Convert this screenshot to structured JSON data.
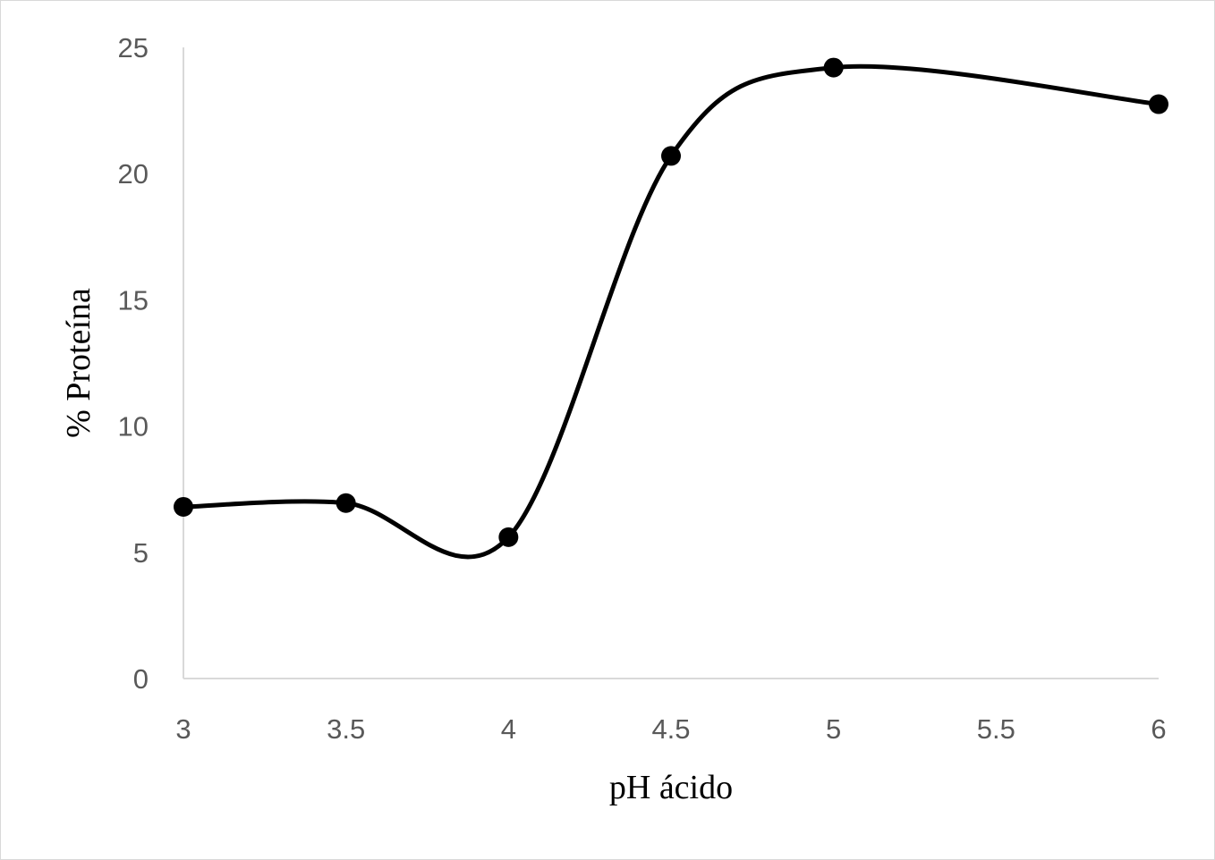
{
  "chart_data": {
    "type": "line",
    "smooth": true,
    "x": [
      3,
      3.5,
      4,
      4.5,
      5,
      6
    ],
    "series": [
      {
        "values": [
          6.8,
          6.95,
          5.6,
          20.7,
          24.2,
          22.75
        ]
      }
    ],
    "xlabel": "pH ácido",
    "ylabel": "% Proteína",
    "xlim": [
      3,
      6
    ],
    "ylim": [
      0,
      25
    ],
    "x_ticks": [
      "3",
      "3.5",
      "4",
      "4.5",
      "5",
      "5.5",
      "6"
    ],
    "y_ticks": [
      "0",
      "5",
      "10",
      "15",
      "20",
      "25"
    ],
    "grid": false,
    "legend": "none",
    "line_color": "#000000",
    "marker_color": "#000000",
    "axis_color": "#d9d9d9",
    "tick_label_color": "#595959"
  }
}
